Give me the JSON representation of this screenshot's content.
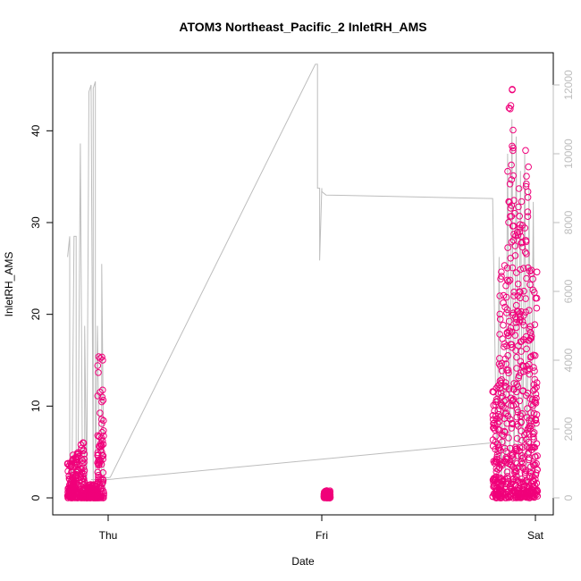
{
  "chart_data": {
    "type": "scatter",
    "title": "ATOM3 Northeast_Pacific_2 InletRH_AMS",
    "xlabel": "Date",
    "ylabel": "InletRH_AMS",
    "x_ticks": [
      "Thu",
      "Fri",
      "Sat"
    ],
    "y_left": {
      "lim": [
        0,
        45
      ],
      "ticks": [
        0,
        10,
        20,
        30,
        40
      ]
    },
    "y_right": {
      "lim": [
        0,
        12000
      ],
      "ticks": [
        0,
        2000,
        4000,
        6000,
        8000,
        10000,
        12000
      ]
    },
    "colors": {
      "points": "#f0007a",
      "line": "#bdbdbd",
      "axis": "#000000",
      "right_axis": "#bdbdbd"
    },
    "x_range_days": [
      -0.2,
      2.05
    ],
    "series": [
      {
        "kind": "line",
        "axis": "right",
        "x": [
          -0.19,
          -0.18,
          -0.18,
          -0.17,
          -0.16,
          -0.15,
          -0.15,
          -0.14,
          -0.14,
          -0.13,
          -0.12,
          -0.11,
          -0.11,
          -0.1,
          -0.1,
          -0.09,
          -0.08,
          -0.07,
          -0.07,
          -0.06,
          -0.06,
          -0.05,
          -0.04,
          -0.04,
          -0.03,
          -0.03,
          -0.02,
          -0.02,
          -0.01,
          -0.01,
          0.0,
          0.01,
          0.97,
          0.98,
          0.98,
          0.99,
          0.99,
          1.0,
          1.0,
          1.01,
          1.02,
          1.8,
          1.82,
          1.83,
          1.84,
          1.85,
          1.86,
          1.87,
          1.88,
          1.89,
          1.9,
          1.91,
          1.92,
          1.93,
          1.94,
          1.95,
          1.96,
          1.97,
          1.98,
          1.99,
          2.0
        ],
        "y": [
          7000,
          7600,
          300,
          200,
          7600,
          7600,
          400,
          250,
          1500,
          10300,
          300,
          200,
          5000,
          200,
          400,
          11800,
          12000,
          300,
          11900,
          12100,
          200,
          5000,
          500,
          200,
          300,
          6800,
          500,
          200,
          600,
          600,
          580,
          600,
          12600,
          12600,
          9000,
          9000,
          6900,
          9000,
          8900,
          8850,
          8800,
          8700,
          500,
          7000,
          300,
          4000,
          300,
          10000,
          300,
          11000,
          400,
          10500,
          300,
          9500,
          400,
          10000,
          300,
          9000,
          500,
          8600,
          300
        ]
      },
      {
        "kind": "line",
        "axis": "left",
        "x": [
          -0.08,
          0.0,
          1.8
        ],
        "y": [
          2.0,
          2.0,
          6.0
        ]
      },
      {
        "kind": "points",
        "axis": "left",
        "clusters": [
          {
            "x": [
              -0.19,
              -0.17
            ],
            "y": [
              0.0,
              4.5
            ]
          },
          {
            "x": [
              -0.17,
              -0.14
            ],
            "y": [
              0.0,
              5.0
            ]
          },
          {
            "x": [
              -0.13,
              -0.11
            ],
            "y": [
              0.0,
              6.5
            ]
          },
          {
            "x": [
              -0.11,
              -0.05
            ],
            "y": [
              0.0,
              1.5
            ]
          },
          {
            "x": [
              -0.05,
              -0.02
            ],
            "y": [
              0.0,
              16.5
            ]
          },
          {
            "x": [
              1.01,
              1.04
            ],
            "y": [
              0.0,
              0.8
            ]
          },
          {
            "x": [
              1.8,
              1.83
            ],
            "y": [
              0.0,
              12.5
            ]
          },
          {
            "x": [
              1.83,
              1.87
            ],
            "y": [
              0.0,
              26.0
            ]
          },
          {
            "x": [
              1.87,
              1.9
            ],
            "y": [
              0.0,
              46.5
            ]
          },
          {
            "x": [
              1.9,
              1.94
            ],
            "y": [
              0.0,
              35.5
            ]
          },
          {
            "x": [
              1.94,
              1.97
            ],
            "y": [
              0.0,
              38.5
            ]
          },
          {
            "x": [
              1.97,
              2.01
            ],
            "y": [
              0.0,
              25.0
            ]
          }
        ]
      }
    ]
  }
}
